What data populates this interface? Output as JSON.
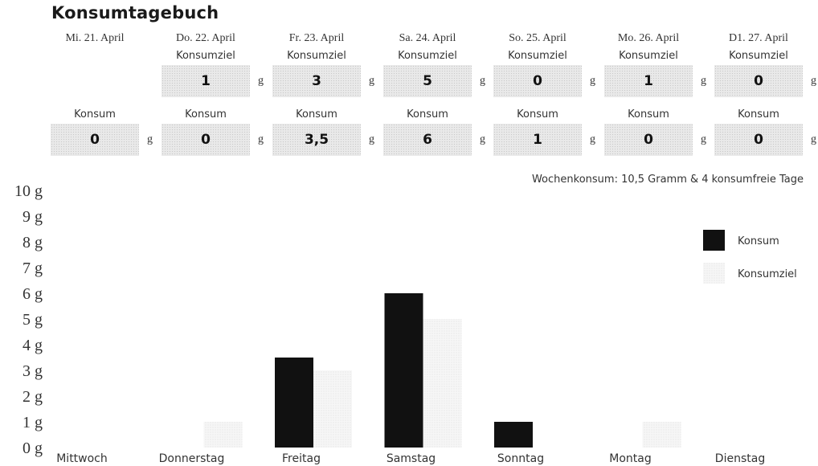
{
  "title": "Konsumtagebuch",
  "unit": "g",
  "goal_label": "Konsumziel",
  "consumption_label": "Konsum",
  "days": [
    {
      "date": "Mi. 21. April",
      "goal": null,
      "consumption": "0"
    },
    {
      "date": "Do. 22. April",
      "goal": "1",
      "consumption": "0"
    },
    {
      "date": "Fr. 23. April",
      "goal": "3",
      "consumption": "3,5"
    },
    {
      "date": "Sa. 24. April",
      "goal": "5",
      "consumption": "6"
    },
    {
      "date": "So. 25. April",
      "goal": "0",
      "consumption": "1"
    },
    {
      "date": "Mo. 26. April",
      "goal": "1",
      "consumption": "0"
    },
    {
      "date": "D1. 27. April",
      "goal": "0",
      "consumption": "0"
    }
  ],
  "summary": "Wochenkonsum: 10,5 Gramm & 4 konsumfreie Tage",
  "colors": {
    "consumption": "#111111",
    "goal": "#f1f1f1"
  },
  "chart_data": {
    "type": "bar",
    "categories": [
      "Mittwoch",
      "Donnerstag",
      "Freitag",
      "Samstag",
      "Sonntag",
      "Montag",
      "Dienstag"
    ],
    "series": [
      {
        "name": "Konsum",
        "values": [
          0,
          0,
          3.5,
          6,
          1,
          0,
          0
        ]
      },
      {
        "name": "Konsumziel",
        "values": [
          0,
          1,
          3,
          5,
          0,
          1,
          0
        ]
      }
    ],
    "yticks": [
      "0 g",
      "1 g",
      "2 g",
      "3 g",
      "4 g",
      "5 g",
      "6 g",
      "7 g",
      "8 g",
      "9 g",
      "10 g"
    ],
    "ylim": [
      0,
      10
    ],
    "legend": "right",
    "grid": false
  }
}
